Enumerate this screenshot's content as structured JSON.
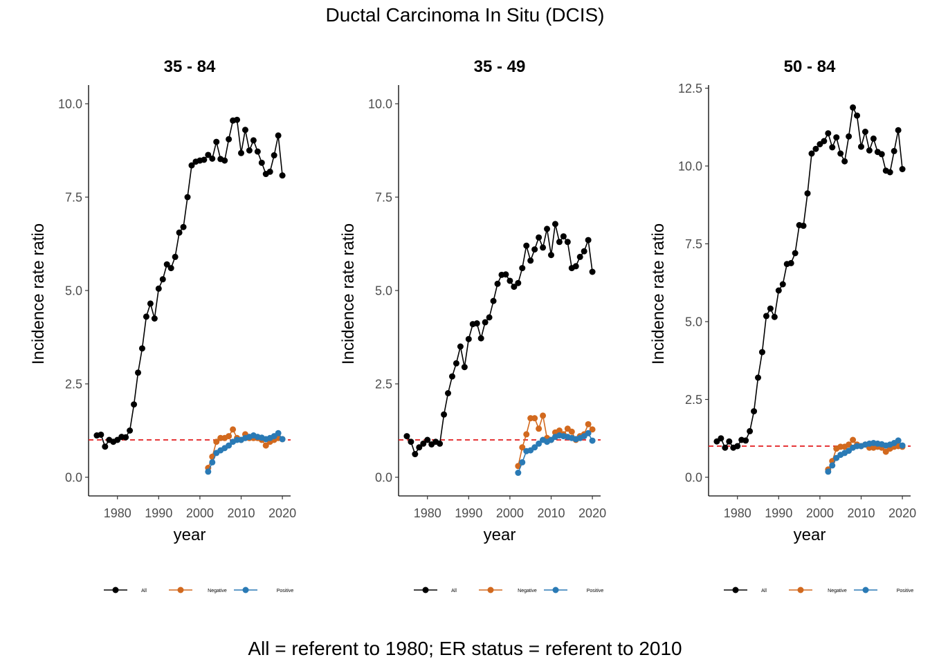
{
  "title": "Ductal Carcinoma In Situ (DCIS)",
  "caption": "All = referent to 1980; ER status = referent to 2010",
  "colors": {
    "All": "#000000",
    "Negative": "#D2691E",
    "Positive": "#2A7AB5",
    "reference": "#E31A1C"
  },
  "chart_data": [
    {
      "type": "line",
      "title": "35 - 84",
      "xlabel": "year",
      "ylabel": "Incidence rate ratio",
      "xlim": [
        1973,
        2022
      ],
      "ylim": [
        -0.5,
        10.5
      ],
      "xticks": [
        1980,
        1990,
        2000,
        2010,
        2020
      ],
      "yticks": [
        0.0,
        2.5,
        5.0,
        7.5,
        10.0
      ],
      "ytick_labels": [
        "0.0",
        "2.5",
        "5.0",
        "7.5",
        "10.0"
      ],
      "reference_line": 1,
      "legend_position": "bottom",
      "series": [
        {
          "name": "All",
          "x": [
            1975,
            1976,
            1977,
            1978,
            1979,
            1980,
            1981,
            1982,
            1983,
            1984,
            1985,
            1986,
            1987,
            1988,
            1989,
            1990,
            1991,
            1992,
            1993,
            1994,
            1995,
            1996,
            1997,
            1998,
            1999,
            2000,
            2001,
            2002,
            2003,
            2004,
            2005,
            2006,
            2007,
            2008,
            2009,
            2010,
            2011,
            2012,
            2013,
            2014,
            2015,
            2016,
            2017,
            2018,
            2019,
            2020
          ],
          "y": [
            1.12,
            1.14,
            0.82,
            1.0,
            0.95,
            1.0,
            1.08,
            1.07,
            1.25,
            1.95,
            2.8,
            3.45,
            4.3,
            4.65,
            4.25,
            5.05,
            5.3,
            5.7,
            5.6,
            5.9,
            6.55,
            6.7,
            7.5,
            8.35,
            8.45,
            8.48,
            8.5,
            8.63,
            8.53,
            8.98,
            8.52,
            8.48,
            9.05,
            9.55,
            9.57,
            8.68,
            9.3,
            8.75,
            9.02,
            8.72,
            8.42,
            8.12,
            8.18,
            8.62,
            9.15,
            8.08
          ]
        },
        {
          "name": "Negative",
          "x": [
            2002,
            2003,
            2004,
            2005,
            2006,
            2007,
            2008,
            2009,
            2010,
            2011,
            2012,
            2013,
            2014,
            2015,
            2016,
            2017,
            2018,
            2019,
            2020
          ],
          "y": [
            0.25,
            0.55,
            0.95,
            1.05,
            1.05,
            1.1,
            1.28,
            1.05,
            1.0,
            1.15,
            1.05,
            1.05,
            1.05,
            1.0,
            0.85,
            0.95,
            1.0,
            1.05,
            1.02
          ]
        },
        {
          "name": "Positive",
          "x": [
            2002,
            2003,
            2004,
            2005,
            2006,
            2007,
            2008,
            2009,
            2010,
            2011,
            2012,
            2013,
            2014,
            2015,
            2016,
            2017,
            2018,
            2019,
            2020
          ],
          "y": [
            0.15,
            0.4,
            0.65,
            0.72,
            0.78,
            0.85,
            0.95,
            1.0,
            1.0,
            1.05,
            1.08,
            1.12,
            1.08,
            1.06,
            1.02,
            1.05,
            1.1,
            1.18,
            1.02
          ]
        }
      ]
    },
    {
      "type": "line",
      "title": "35 - 49",
      "xlabel": "year",
      "ylabel": "Incidence rate ratio",
      "xlim": [
        1973,
        2022
      ],
      "ylim": [
        -0.5,
        10.5
      ],
      "xticks": [
        1980,
        1990,
        2000,
        2010,
        2020
      ],
      "yticks": [
        0.0,
        2.5,
        5.0,
        7.5,
        10.0
      ],
      "ytick_labels": [
        "0.0",
        "2.5",
        "5.0",
        "7.5",
        "10.0"
      ],
      "reference_line": 1,
      "legend_position": "bottom",
      "series": [
        {
          "name": "All",
          "x": [
            1975,
            1976,
            1977,
            1978,
            1979,
            1980,
            1981,
            1982,
            1983,
            1984,
            1985,
            1986,
            1987,
            1988,
            1989,
            1990,
            1991,
            1992,
            1993,
            1994,
            1995,
            1996,
            1997,
            1998,
            1999,
            2000,
            2001,
            2002,
            2003,
            2004,
            2005,
            2006,
            2007,
            2008,
            2009,
            2010,
            2011,
            2012,
            2013,
            2014,
            2015,
            2016,
            2017,
            2018,
            2019,
            2020
          ],
          "y": [
            1.1,
            0.95,
            0.62,
            0.8,
            0.9,
            1.0,
            0.88,
            0.95,
            0.9,
            1.68,
            2.25,
            2.7,
            3.05,
            3.5,
            2.95,
            3.7,
            4.1,
            4.12,
            3.72,
            4.15,
            4.28,
            4.72,
            5.18,
            5.42,
            5.43,
            5.26,
            5.1,
            5.2,
            5.6,
            6.2,
            5.8,
            6.1,
            6.42,
            6.15,
            6.65,
            5.95,
            6.78,
            6.3,
            6.45,
            6.3,
            5.6,
            5.65,
            5.9,
            6.05,
            6.35,
            5.5
          ]
        },
        {
          "name": "Negative",
          "x": [
            2002,
            2003,
            2004,
            2005,
            2006,
            2007,
            2008,
            2009,
            2010,
            2011,
            2012,
            2013,
            2014,
            2015,
            2016,
            2017,
            2018,
            2019,
            2020
          ],
          "y": [
            0.3,
            0.8,
            1.15,
            1.58,
            1.58,
            1.3,
            1.65,
            1.05,
            1.0,
            1.2,
            1.25,
            1.15,
            1.3,
            1.22,
            1.0,
            1.1,
            1.15,
            1.42,
            1.28
          ]
        },
        {
          "name": "Positive",
          "x": [
            2002,
            2003,
            2004,
            2005,
            2006,
            2007,
            2008,
            2009,
            2010,
            2011,
            2012,
            2013,
            2014,
            2015,
            2016,
            2017,
            2018,
            2019,
            2020
          ],
          "y": [
            0.12,
            0.4,
            0.7,
            0.72,
            0.8,
            0.9,
            1.0,
            0.95,
            1.0,
            1.08,
            1.12,
            1.1,
            1.08,
            1.05,
            1.02,
            1.05,
            1.1,
            1.18,
            0.98
          ]
        }
      ]
    },
    {
      "type": "line",
      "title": "50 - 84",
      "xlabel": "year",
      "ylabel": "Incidence rate ratio",
      "xlim": [
        1973,
        2022
      ],
      "ylim": [
        -0.6,
        12.6
      ],
      "xticks": [
        1980,
        1990,
        2000,
        2010,
        2020
      ],
      "yticks": [
        0.0,
        2.5,
        5.0,
        7.5,
        10.0,
        12.5
      ],
      "ytick_labels": [
        "0.0",
        "2.5",
        "5.0",
        "7.5",
        "10.0",
        "12.5"
      ],
      "reference_line": 1,
      "legend_position": "bottom",
      "series": [
        {
          "name": "All",
          "x": [
            1975,
            1976,
            1977,
            1978,
            1979,
            1980,
            1981,
            1982,
            1983,
            1984,
            1985,
            1986,
            1987,
            1988,
            1989,
            1990,
            1991,
            1992,
            1993,
            1994,
            1995,
            1996,
            1997,
            1998,
            1999,
            2000,
            2001,
            2002,
            2003,
            2004,
            2005,
            2006,
            2007,
            2008,
            2009,
            2010,
            2011,
            2012,
            2013,
            2014,
            2015,
            2016,
            2017,
            2018,
            2019,
            2020
          ],
          "y": [
            1.15,
            1.25,
            0.95,
            1.15,
            0.95,
            1.0,
            1.2,
            1.18,
            1.48,
            2.12,
            3.2,
            4.02,
            5.18,
            5.42,
            5.15,
            6.0,
            6.2,
            6.85,
            6.88,
            7.2,
            8.1,
            8.08,
            9.12,
            10.4,
            10.55,
            10.7,
            10.8,
            11.05,
            10.6,
            10.92,
            10.4,
            10.15,
            10.95,
            11.88,
            11.62,
            10.62,
            11.1,
            10.5,
            10.88,
            10.45,
            10.38,
            9.85,
            9.8,
            10.48,
            11.15,
            9.9
          ]
        },
        {
          "name": "Negative",
          "x": [
            2002,
            2003,
            2004,
            2005,
            2006,
            2007,
            2008,
            2009,
            2010,
            2011,
            2012,
            2013,
            2014,
            2015,
            2016,
            2017,
            2018,
            2019,
            2020
          ],
          "y": [
            0.25,
            0.52,
            0.92,
            0.98,
            0.98,
            1.05,
            1.2,
            1.05,
            1.0,
            1.05,
            0.95,
            0.95,
            0.98,
            0.95,
            0.82,
            0.92,
            0.98,
            1.0,
            0.98
          ]
        },
        {
          "name": "Positive",
          "x": [
            2002,
            2003,
            2004,
            2005,
            2006,
            2007,
            2008,
            2009,
            2010,
            2011,
            2012,
            2013,
            2014,
            2015,
            2016,
            2017,
            2018,
            2019,
            2020
          ],
          "y": [
            0.18,
            0.38,
            0.62,
            0.72,
            0.78,
            0.85,
            0.95,
            1.0,
            1.0,
            1.05,
            1.08,
            1.1,
            1.08,
            1.06,
            1.02,
            1.05,
            1.1,
            1.18,
            1.02
          ]
        }
      ]
    }
  ]
}
